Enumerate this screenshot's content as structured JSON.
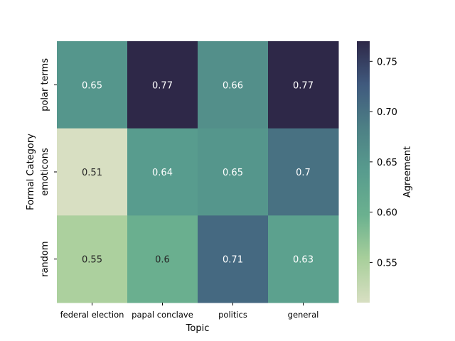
{
  "chart_data": {
    "type": "heatmap",
    "title": "",
    "xlabel": "Topic",
    "ylabel": "Formal Category",
    "x_categories": [
      "federal election",
      "papal conclave",
      "politics",
      "general"
    ],
    "y_categories": [
      "polar terms",
      "emoticons",
      "random"
    ],
    "values": [
      [
        0.65,
        0.77,
        0.66,
        0.77
      ],
      [
        0.51,
        0.64,
        0.65,
        0.7
      ],
      [
        0.55,
        0.6,
        0.71,
        0.63
      ]
    ],
    "value_labels": [
      [
        "0.65",
        "0.77",
        "0.66",
        "0.77"
      ],
      [
        "0.51",
        "0.64",
        "0.65",
        "0.7"
      ],
      [
        "0.55",
        "0.6",
        "0.71",
        "0.63"
      ]
    ],
    "colorbar": {
      "label": "Agreement",
      "range": [
        0.51,
        0.77
      ],
      "ticks": [
        0.55,
        0.6,
        0.65,
        0.7,
        0.75
      ],
      "tick_labels": [
        "0.55",
        "0.60",
        "0.65",
        "0.70",
        "0.75"
      ]
    },
    "colormap_stops": [
      "#d8dfc2",
      "#a8cf9b",
      "#6bb18f",
      "#589c8e",
      "#4d8085",
      "#405a7e",
      "#2e2848"
    ],
    "grid": false
  }
}
